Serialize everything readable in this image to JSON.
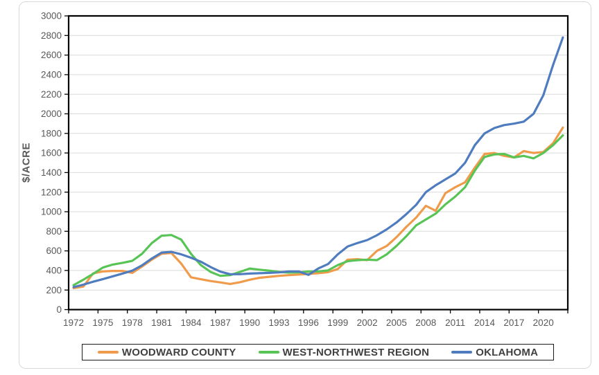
{
  "chart": {
    "y_axis": {
      "title": "$/ACRE",
      "min": 0,
      "max": 3000,
      "step": 200
    },
    "x_axis": {
      "tick_years": [
        1972,
        1975,
        1978,
        1981,
        1984,
        1987,
        1990,
        1993,
        1996,
        1999,
        2002,
        2005,
        2008,
        2011,
        2014,
        2017,
        2020
      ]
    },
    "colors": {
      "grid": "#d9d9d9",
      "plot_border": "#000000",
      "tick_text": "#595959",
      "legend_text": "#404040",
      "legend_border": "#1a1a1a",
      "frame_border": "#d9d9d9"
    }
  },
  "chart_data": {
    "type": "line",
    "title": "",
    "xlabel": "",
    "ylabel": "$/ACRE",
    "ylim": [
      0,
      3000
    ],
    "ystep": 200,
    "grid": true,
    "legend_position": "bottom",
    "x": [
      1972,
      1973,
      1974,
      1975,
      1976,
      1977,
      1978,
      1979,
      1980,
      1981,
      1982,
      1983,
      1984,
      1985,
      1986,
      1987,
      1988,
      1989,
      1990,
      1991,
      1992,
      1993,
      1994,
      1995,
      1996,
      1997,
      1998,
      1999,
      2000,
      2001,
      2002,
      2003,
      2004,
      2005,
      2006,
      2007,
      2008,
      2009,
      2010,
      2011,
      2012,
      2013,
      2014,
      2015,
      2016,
      2017,
      2018,
      2019,
      2020,
      2021,
      2022
    ],
    "series": [
      {
        "name": "WOODWARD COUNTY",
        "color": "#F09B4B",
        "values": [
          220,
          235,
          370,
          390,
          395,
          395,
          375,
          440,
          510,
          570,
          578,
          470,
          330,
          310,
          292,
          278,
          262,
          280,
          305,
          325,
          335,
          345,
          352,
          358,
          365,
          372,
          382,
          415,
          510,
          515,
          505,
          600,
          650,
          740,
          845,
          940,
          1060,
          1010,
          1190,
          1250,
          1300,
          1450,
          1590,
          1600,
          1570,
          1555,
          1620,
          1600,
          1610,
          1700,
          1860
        ]
      },
      {
        "name": "WEST-NORTHWEST REGION",
        "color": "#58C455",
        "values": [
          250,
          305,
          365,
          430,
          460,
          478,
          498,
          570,
          680,
          755,
          762,
          715,
          570,
          455,
          385,
          345,
          352,
          385,
          420,
          408,
          398,
          385,
          378,
          380,
          390,
          390,
          400,
          455,
          495,
          505,
          510,
          505,
          565,
          650,
          750,
          860,
          920,
          980,
          1075,
          1155,
          1250,
          1420,
          1560,
          1585,
          1590,
          1555,
          1570,
          1545,
          1600,
          1680,
          1780
        ]
      },
      {
        "name": "OKLAHOMA",
        "color": "#4E7CBE",
        "values": [
          230,
          255,
          285,
          312,
          340,
          368,
          398,
          452,
          522,
          582,
          590,
          565,
          530,
          490,
          435,
          388,
          362,
          362,
          368,
          372,
          375,
          380,
          390,
          390,
          355,
          420,
          465,
          565,
          645,
          680,
          710,
          760,
          820,
          890,
          975,
          1070,
          1200,
          1270,
          1330,
          1390,
          1500,
          1680,
          1800,
          1855,
          1885,
          1900,
          1920,
          2000,
          2190,
          2500,
          2780
        ]
      }
    ]
  }
}
